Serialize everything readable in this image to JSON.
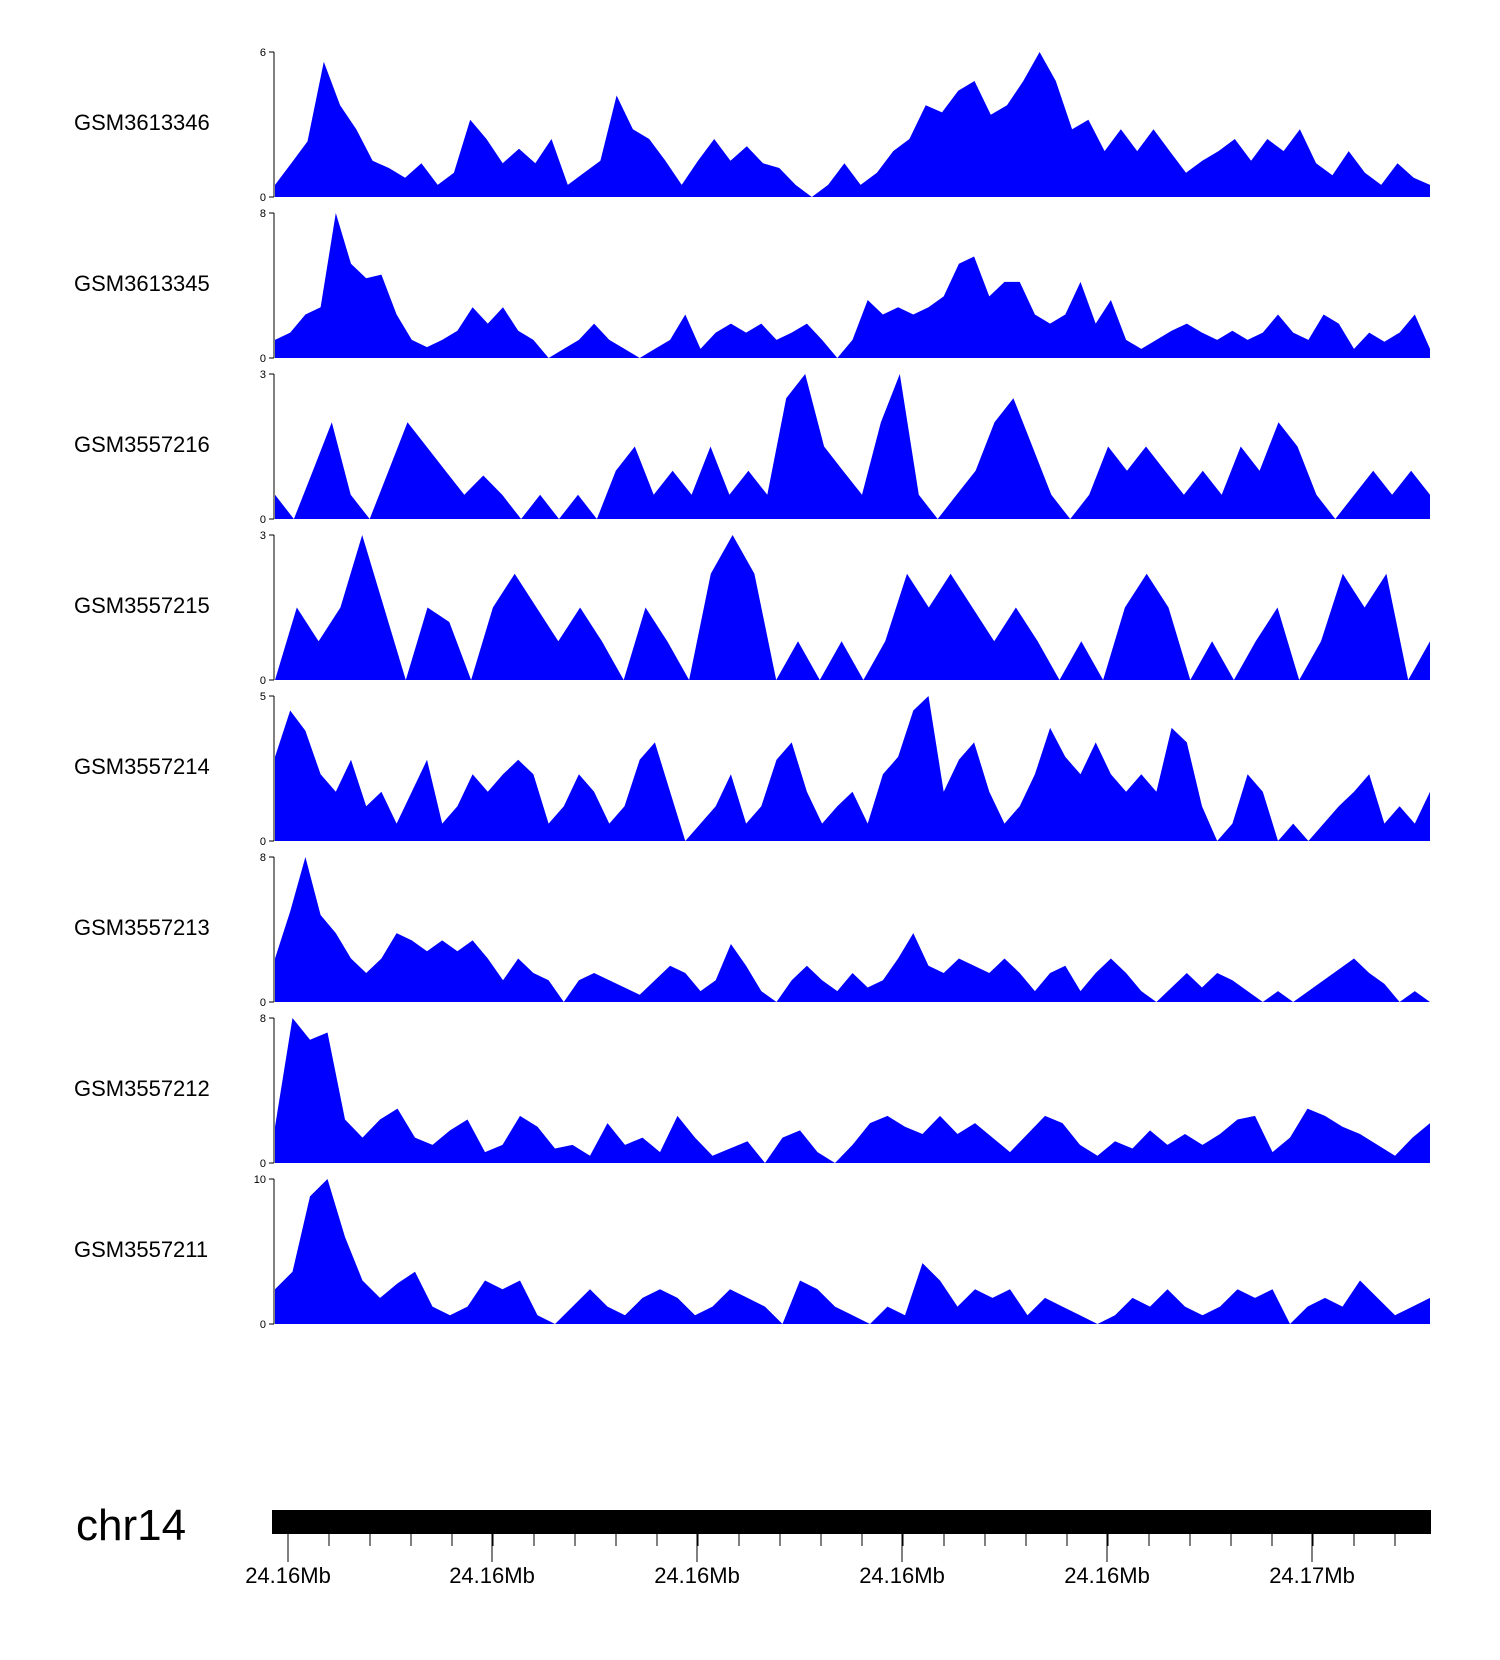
{
  "colors": {
    "fill": "#0000ff",
    "axis": "#000000",
    "background": "#ffffff"
  },
  "chart_data": {
    "type": "area",
    "title": "",
    "tracks": [
      {
        "name": "GSM3613346",
        "ymax": 6,
        "ymin_label": "0",
        "ymax_label": "6",
        "values": [
          0.5,
          1.4,
          2.3,
          5.6,
          3.8,
          2.8,
          1.5,
          1.2,
          0.8,
          1.4,
          0.5,
          1.0,
          3.2,
          2.4,
          1.4,
          2.0,
          1.4,
          2.4,
          0.5,
          1.0,
          1.5,
          4.2,
          2.8,
          2.4,
          1.5,
          0.5,
          1.5,
          2.4,
          1.5,
          2.1,
          1.4,
          1.2,
          0.5,
          0,
          0.5,
          1.4,
          0.5,
          1.0,
          1.9,
          2.4,
          3.8,
          3.5,
          4.4,
          4.8,
          3.4,
          3.8,
          4.8,
          6.0,
          4.8,
          2.8,
          3.2,
          1.9,
          2.8,
          1.9,
          2.8,
          1.9,
          1.0,
          1.5,
          1.9,
          2.4,
          1.5,
          2.4,
          1.9,
          2.8,
          1.4,
          0.9,
          1.9,
          1.0,
          0.5,
          1.4,
          0.8,
          0.5
        ]
      },
      {
        "name": "GSM3613345",
        "ymax": 8,
        "ymin_label": "0",
        "ymax_label": "8",
        "values": [
          1.0,
          1.4,
          2.4,
          2.8,
          8.0,
          5.2,
          4.4,
          4.6,
          2.4,
          1.0,
          0.6,
          1.0,
          1.5,
          2.8,
          1.9,
          2.8,
          1.5,
          1.0,
          0,
          0.5,
          1.0,
          1.9,
          1.0,
          0.5,
          0,
          0.5,
          1.0,
          2.4,
          0.5,
          1.4,
          1.9,
          1.4,
          1.9,
          1.0,
          1.4,
          1.9,
          1.0,
          0,
          1.0,
          3.2,
          2.4,
          2.8,
          2.4,
          2.8,
          3.4,
          5.2,
          5.6,
          3.4,
          4.2,
          4.2,
          2.4,
          1.9,
          2.4,
          4.2,
          1.9,
          3.2,
          1.0,
          0.5,
          1.0,
          1.5,
          1.9,
          1.4,
          1.0,
          1.5,
          1.0,
          1.4,
          2.4,
          1.4,
          1.0,
          2.4,
          1.9,
          0.5,
          1.4,
          0.9,
          1.4,
          2.4,
          0.5
        ]
      },
      {
        "name": "GSM3557216",
        "ymax": 3,
        "ymin_label": "0",
        "ymax_label": "3",
        "values": [
          0.5,
          0,
          1.0,
          2.0,
          0.5,
          0,
          1.0,
          2.0,
          1.5,
          1.0,
          0.5,
          0.9,
          0.5,
          0,
          0.5,
          0,
          0.5,
          0,
          1.0,
          1.5,
          0.5,
          1.0,
          0.5,
          1.5,
          0.5,
          1.0,
          0.5,
          2.5,
          3.0,
          1.5,
          1.0,
          0.5,
          2.0,
          3.0,
          0.5,
          0,
          0.5,
          1.0,
          2.0,
          2.5,
          1.5,
          0.5,
          0,
          0.5,
          1.5,
          1.0,
          1.5,
          1.0,
          0.5,
          1.0,
          0.5,
          1.5,
          1.0,
          2.0,
          1.5,
          0.5,
          0,
          0.5,
          1.0,
          0.5,
          1.0,
          0.5
        ]
      },
      {
        "name": "GSM3557215",
        "ymax": 3,
        "ymin_label": "0",
        "ymax_label": "3",
        "values": [
          0,
          1.5,
          0.8,
          1.5,
          3.0,
          1.5,
          0,
          1.5,
          1.2,
          0,
          1.5,
          2.2,
          1.5,
          0.8,
          1.5,
          0.8,
          0,
          1.5,
          0.8,
          0,
          2.2,
          3.0,
          2.2,
          0,
          0.8,
          0,
          0.8,
          0,
          0.8,
          2.2,
          1.5,
          2.2,
          1.5,
          0.8,
          1.5,
          0.8,
          0,
          0.8,
          0,
          1.5,
          2.2,
          1.5,
          0,
          0.8,
          0,
          0.8,
          1.5,
          0,
          0.8,
          2.2,
          1.5,
          2.2,
          0,
          0.8
        ]
      },
      {
        "name": "GSM3557214",
        "ymax": 5,
        "ymin_label": "0",
        "ymax_label": "5",
        "values": [
          2.9,
          4.5,
          3.8,
          2.3,
          1.7,
          2.8,
          1.2,
          1.7,
          0.6,
          1.7,
          2.8,
          0.6,
          1.2,
          2.3,
          1.7,
          2.3,
          2.8,
          2.3,
          0.6,
          1.2,
          2.3,
          1.7,
          0.6,
          1.2,
          2.8,
          3.4,
          1.7,
          0,
          0.6,
          1.2,
          2.3,
          0.6,
          1.2,
          2.8,
          3.4,
          1.7,
          0.6,
          1.2,
          1.7,
          0.6,
          2.3,
          2.9,
          4.5,
          5.0,
          1.7,
          2.8,
          3.4,
          1.7,
          0.6,
          1.2,
          2.3,
          3.9,
          2.9,
          2.3,
          3.4,
          2.3,
          1.7,
          2.3,
          1.7,
          3.9,
          3.4,
          1.2,
          0,
          0.6,
          2.3,
          1.7,
          0,
          0.6,
          0,
          0.6,
          1.2,
          1.7,
          2.3,
          0.6,
          1.2,
          0.6,
          1.7
        ]
      },
      {
        "name": "GSM3557213",
        "ymax": 8,
        "ymin_label": "0",
        "ymax_label": "8",
        "values": [
          2.4,
          5.0,
          8.0,
          4.8,
          3.8,
          2.4,
          1.6,
          2.4,
          3.8,
          3.4,
          2.8,
          3.4,
          2.8,
          3.4,
          2.4,
          1.2,
          2.4,
          1.6,
          1.2,
          0,
          1.2,
          1.6,
          1.2,
          0.8,
          0.4,
          1.2,
          2.0,
          1.6,
          0.6,
          1.2,
          3.2,
          2.0,
          0.6,
          0,
          1.2,
          2.0,
          1.2,
          0.6,
          1.6,
          0.8,
          1.2,
          2.4,
          3.8,
          2.0,
          1.6,
          2.4,
          2.0,
          1.6,
          2.4,
          1.6,
          0.6,
          1.6,
          2.0,
          0.6,
          1.6,
          2.4,
          1.6,
          0.6,
          0,
          0.8,
          1.6,
          0.8,
          1.6,
          1.2,
          0.6,
          0,
          0.6,
          0,
          0.6,
          1.2,
          1.8,
          2.4,
          1.6,
          1.0,
          0,
          0.6,
          0
        ]
      },
      {
        "name": "GSM3557212",
        "ymax": 8,
        "ymin_label": "0",
        "ymax_label": "8",
        "values": [
          2.0,
          8.0,
          6.8,
          7.2,
          2.4,
          1.4,
          2.4,
          3.0,
          1.4,
          1.0,
          1.8,
          2.4,
          0.6,
          1.0,
          2.6,
          2.0,
          0.8,
          1.0,
          0.4,
          2.2,
          1.0,
          1.4,
          0.6,
          2.6,
          1.4,
          0.4,
          0.8,
          1.2,
          0,
          1.4,
          1.8,
          0.6,
          0,
          1.0,
          2.2,
          2.6,
          2.0,
          1.6,
          2.6,
          1.6,
          2.2,
          1.4,
          0.6,
          1.6,
          2.6,
          2.2,
          1.0,
          0.4,
          1.2,
          0.8,
          1.8,
          1.0,
          1.6,
          1.0,
          1.6,
          2.4,
          2.6,
          0.6,
          1.4,
          3.0,
          2.6,
          2.0,
          1.6,
          1.0,
          0.4,
          1.4,
          2.2
        ]
      },
      {
        "name": "GSM3557211",
        "ymax": 10,
        "ymin_label": "0",
        "ymax_label": "10",
        "values": [
          2.4,
          3.6,
          8.8,
          10.0,
          6.0,
          3.0,
          1.8,
          2.8,
          3.6,
          1.2,
          0.6,
          1.2,
          3.0,
          2.4,
          3.0,
          0.6,
          0,
          1.2,
          2.4,
          1.2,
          0.6,
          1.8,
          2.4,
          1.8,
          0.6,
          1.2,
          2.4,
          1.8,
          1.2,
          0,
          3.0,
          2.4,
          1.2,
          0.6,
          0,
          1.2,
          0.6,
          4.2,
          3.0,
          1.2,
          2.4,
          1.8,
          2.4,
          0.6,
          1.8,
          1.2,
          0.6,
          0,
          0.6,
          1.8,
          1.2,
          2.4,
          1.2,
          0.6,
          1.2,
          2.4,
          1.8,
          2.4,
          0,
          1.2,
          1.8,
          1.2,
          3.0,
          1.8,
          0.6,
          1.2,
          1.8
        ]
      }
    ],
    "chromosome": "chr14",
    "x_tick_labels": [
      "24.16Mb",
      "24.16Mb",
      "24.16Mb",
      "24.16Mb",
      "24.16Mb",
      "24.17Mb"
    ],
    "xlabel": "",
    "ylabel": ""
  }
}
